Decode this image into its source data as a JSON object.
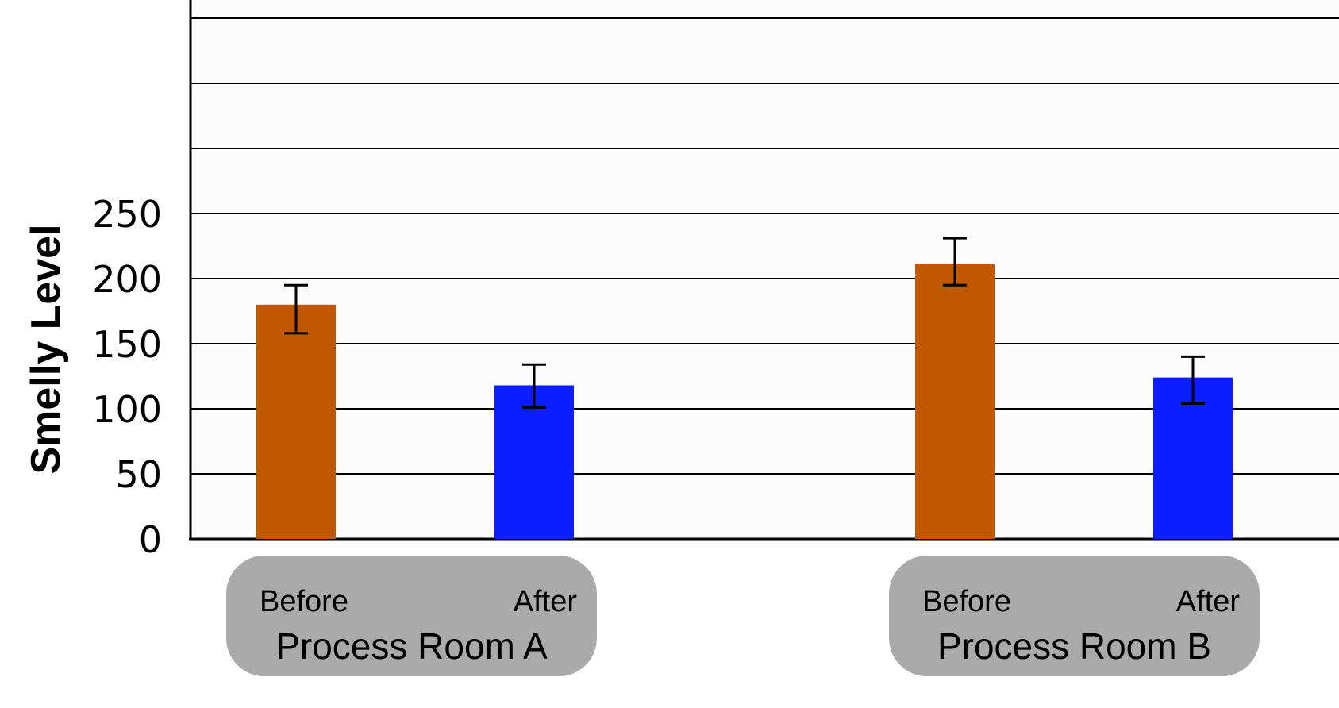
{
  "chart_data": {
    "type": "bar",
    "ylabel": "Smelly Level",
    "yticks": [
      0,
      50,
      100,
      150,
      200,
      250
    ],
    "ylim": [
      0,
      400
    ],
    "grid": true,
    "groups": [
      {
        "label": "Process Room A",
        "bars": [
          {
            "category": "Before",
            "value": 180,
            "error_low": 158,
            "error_high": 195,
            "color": "#c05800"
          },
          {
            "category": "After",
            "value": 118,
            "error_low": 101,
            "error_high": 134,
            "color": "#0a1eff"
          }
        ]
      },
      {
        "label": "Process Room B",
        "bars": [
          {
            "category": "Before",
            "value": 211,
            "error_low": 195,
            "error_high": 231,
            "color": "#c05800"
          },
          {
            "category": "After",
            "value": 124,
            "error_low": 104,
            "error_high": 140,
            "color": "#0a1eff"
          }
        ]
      }
    ]
  },
  "colors": {
    "before": "#c05800",
    "after": "#0a1eff",
    "group_panel": "#aaaaaa",
    "plot_background": "#fcfcfc"
  }
}
